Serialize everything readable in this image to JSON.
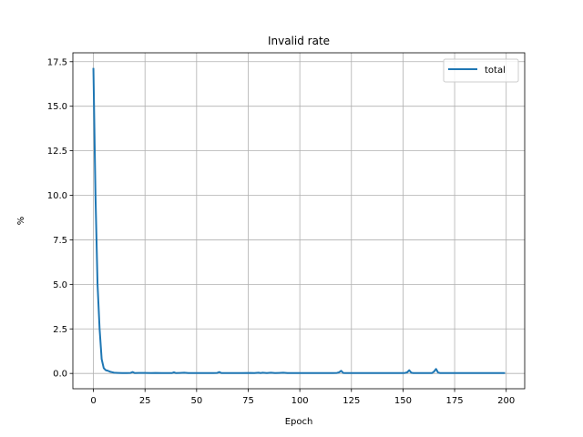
{
  "chart_data": {
    "type": "line",
    "title": "Invalid rate",
    "xlabel": "Epoch",
    "ylabel": "%",
    "xlim": [
      -9.95,
      208.95
    ],
    "ylim": [
      -0.86,
      18.0
    ],
    "xticks": [
      0,
      25,
      50,
      75,
      100,
      125,
      150,
      175,
      200
    ],
    "yticks": [
      0.0,
      2.5,
      5.0,
      7.5,
      10.0,
      12.5,
      15.0,
      17.5
    ],
    "ytick_labels": [
      "0.0",
      "2.5",
      "5.0",
      "7.5",
      "10.0",
      "12.5",
      "15.0",
      "17.5"
    ],
    "grid": true,
    "legend": {
      "position": "top-right",
      "entries": [
        "total"
      ]
    },
    "series": [
      {
        "name": "total",
        "color": "#1f77b4",
        "x": [
          0,
          1,
          2,
          3,
          4,
          5,
          6,
          7,
          8,
          9,
          10,
          12,
          14,
          16,
          18,
          19,
          20,
          22,
          25,
          28,
          30,
          33,
          36,
          38,
          39,
          40,
          42,
          44,
          46,
          48,
          50,
          55,
          58,
          60,
          61,
          62,
          64,
          68,
          72,
          76,
          78,
          80,
          81,
          82,
          84,
          86,
          88,
          90,
          92,
          94,
          100,
          110,
          114,
          116,
          118,
          119,
          120,
          121,
          122,
          124,
          130,
          140,
          150,
          151,
          152,
          153,
          154,
          155,
          158,
          162,
          164,
          165,
          166,
          167,
          168,
          170,
          180,
          190,
          199
        ],
        "y": [
          17.1,
          10.0,
          5.0,
          2.5,
          0.8,
          0.3,
          0.18,
          0.15,
          0.1,
          0.07,
          0.04,
          0.03,
          0.02,
          0.02,
          0.03,
          0.08,
          0.02,
          0.03,
          0.03,
          0.02,
          0.03,
          0.02,
          0.02,
          0.02,
          0.06,
          0.02,
          0.03,
          0.04,
          0.02,
          0.02,
          0.02,
          0.02,
          0.02,
          0.03,
          0.08,
          0.02,
          0.02,
          0.02,
          0.02,
          0.03,
          0.02,
          0.04,
          0.02,
          0.04,
          0.02,
          0.04,
          0.02,
          0.03,
          0.04,
          0.02,
          0.02,
          0.02,
          0.02,
          0.02,
          0.03,
          0.06,
          0.15,
          0.03,
          0.02,
          0.02,
          0.02,
          0.02,
          0.02,
          0.03,
          0.06,
          0.18,
          0.04,
          0.02,
          0.02,
          0.02,
          0.02,
          0.1,
          0.25,
          0.05,
          0.02,
          0.02,
          0.02,
          0.02,
          0.02
        ]
      }
    ]
  }
}
